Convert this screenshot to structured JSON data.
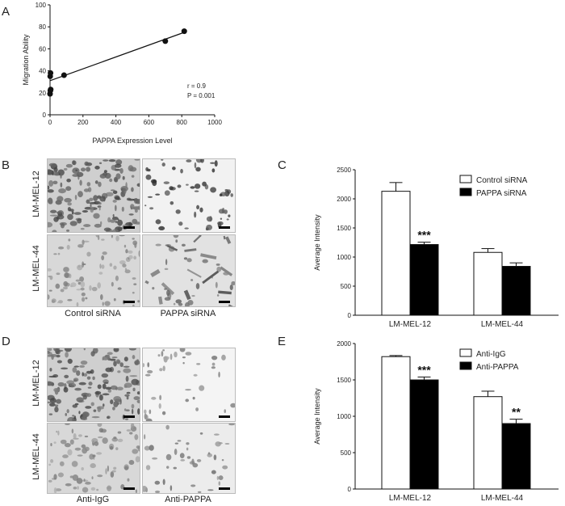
{
  "panels": {
    "a": "A",
    "b": "B",
    "c": "C",
    "d": "D",
    "e": "E"
  },
  "micrographs_b": {
    "rows": [
      "LM-MEL-12",
      "LM-MEL-44"
    ],
    "cols": [
      "Control siRNA",
      "PAPPA siRNA"
    ]
  },
  "micrographs_d": {
    "rows": [
      "LM-MEL-12",
      "LM-MEL-44"
    ],
    "cols": [
      "Anti-IgG",
      "Anti-PAPPA"
    ]
  },
  "colors": {
    "ink": "#111111",
    "open_bar": "#ffffff",
    "filled_bar": "#000000"
  },
  "chart_data": [
    {
      "id": "A",
      "type": "scatter",
      "xlabel": "PAPPA Expression Level",
      "ylabel": "Migration Ability",
      "xlim": [
        0,
        1000
      ],
      "ylim": [
        0,
        100
      ],
      "xticks": [
        0,
        200,
        400,
        600,
        800,
        1000
      ],
      "yticks": [
        0,
        20,
        40,
        60,
        80,
        100
      ],
      "points": [
        {
          "x": 0,
          "y": 19
        },
        {
          "x": 2,
          "y": 22
        },
        {
          "x": 4,
          "y": 23
        },
        {
          "x": 1,
          "y": 35
        },
        {
          "x": 3,
          "y": 38
        },
        {
          "x": 85,
          "y": 36
        },
        {
          "x": 700,
          "y": 67
        },
        {
          "x": 815,
          "y": 76
        }
      ],
      "fit_line": [
        {
          "x": 0,
          "y": 31
        },
        {
          "x": 815,
          "y": 75
        }
      ],
      "annotations": [
        "r = 0.9",
        "P = 0.001"
      ],
      "grid": false
    },
    {
      "id": "C",
      "type": "bar",
      "ylabel": "Average Intensity",
      "ylim": [
        0,
        2500
      ],
      "yticks": [
        0,
        500,
        1000,
        1500,
        2000,
        2500
      ],
      "categories": [
        "LM-MEL-12",
        "LM-MEL-44"
      ],
      "series": [
        {
          "name": "Control siRNA",
          "fill": "open",
          "values": [
            2130,
            1080
          ],
          "errors": [
            150,
            65
          ],
          "sig": [
            "",
            ""
          ]
        },
        {
          "name": "PAPPA siRNA",
          "fill": "filled",
          "values": [
            1215,
            840
          ],
          "errors": [
            40,
            60
          ],
          "sig": [
            "***",
            ""
          ]
        }
      ],
      "legend": "top-right",
      "grid": false
    },
    {
      "id": "E",
      "type": "bar",
      "ylabel": "Average Intensity",
      "ylim": [
        0,
        2000
      ],
      "yticks": [
        0,
        500,
        1000,
        1500,
        2000
      ],
      "categories": [
        "LM-MEL-12",
        "LM-MEL-44"
      ],
      "series": [
        {
          "name": "Anti-IgG",
          "fill": "open",
          "values": [
            1820,
            1270
          ],
          "errors": [
            15,
            75
          ],
          "sig": [
            "",
            ""
          ]
        },
        {
          "name": "Anti-PAPPA",
          "fill": "filled",
          "values": [
            1500,
            900
          ],
          "errors": [
            40,
            60
          ],
          "sig": [
            "***",
            "**"
          ]
        }
      ],
      "legend": "top-right",
      "grid": false
    }
  ]
}
